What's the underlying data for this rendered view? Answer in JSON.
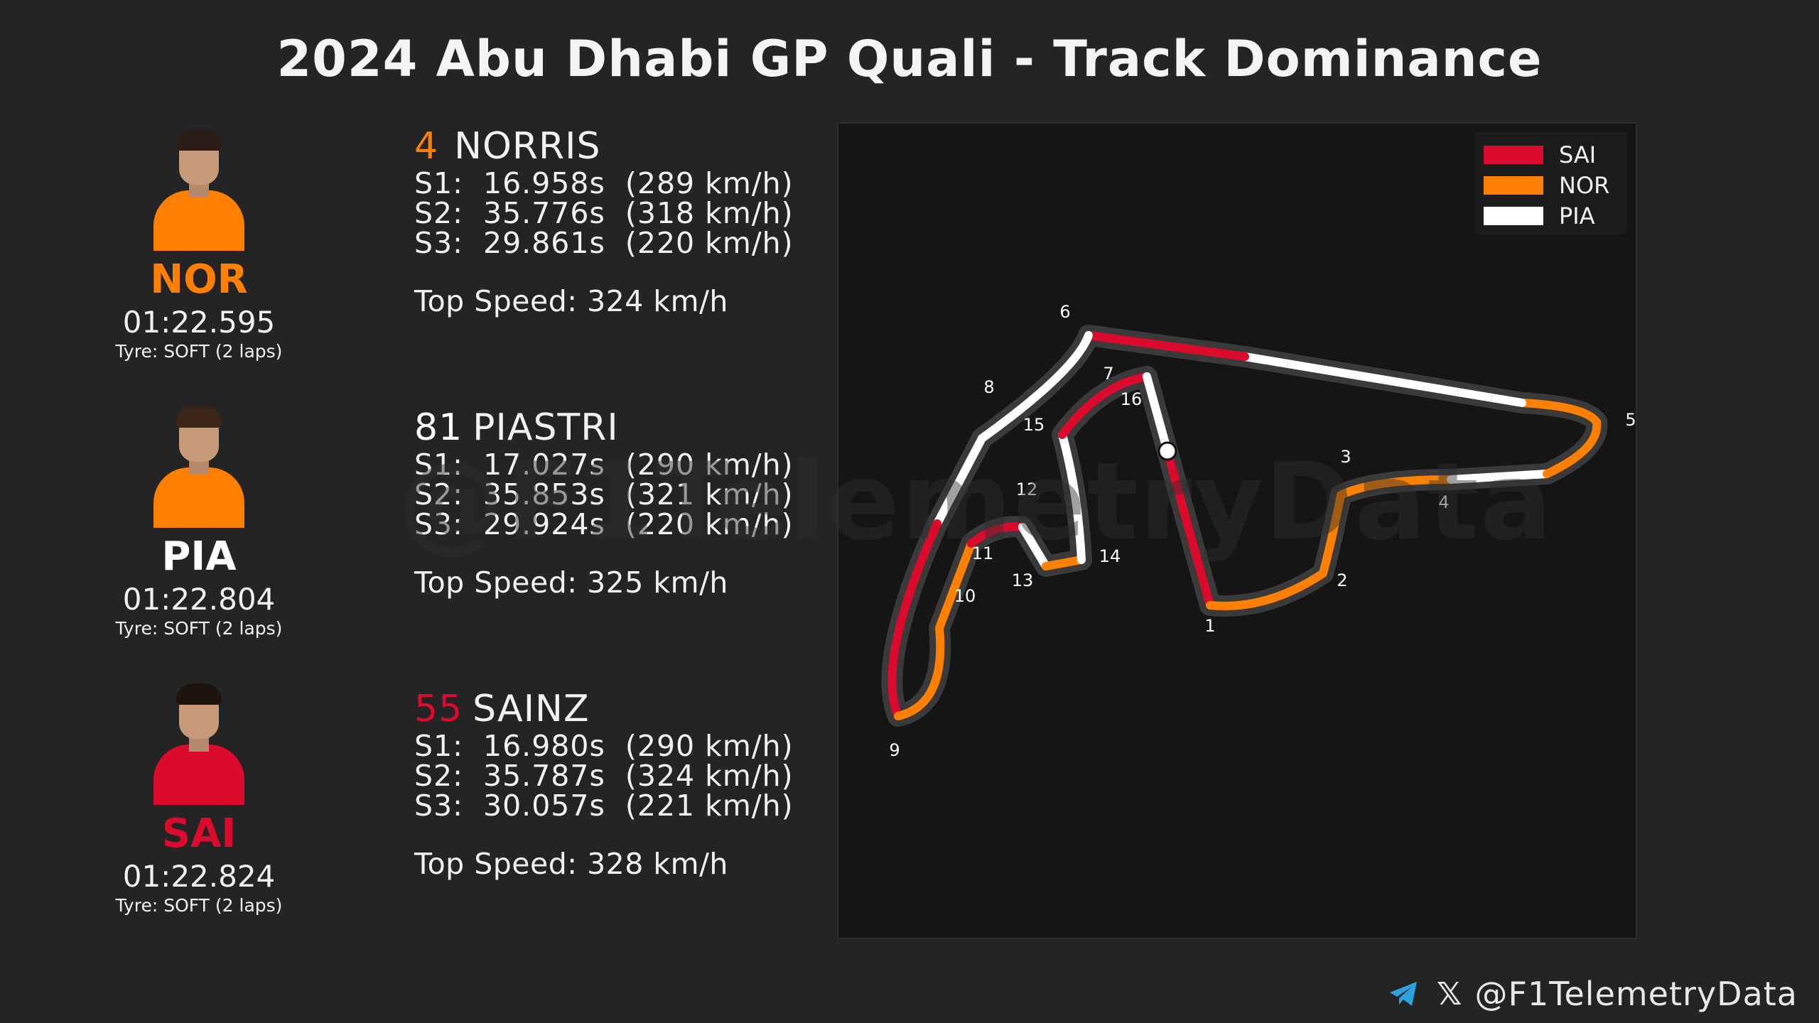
{
  "title": "2024 Abu Dhabi GP Quali - Track Dominance",
  "watermark": "@F1TelemetryData",
  "colors": {
    "SAI": "#dc0a2d",
    "NOR": "#ff8000",
    "PIA": "#ffffff"
  },
  "drivers": [
    {
      "code": "NOR",
      "number": "4",
      "name": "NORRIS",
      "number_color": "#ff8000",
      "lap_time": "01:22.595",
      "tyre": "Tyre: SOFT (2 laps)",
      "s1": "S1:  16.958s  (289 km/h)",
      "s2": "S2:  35.776s  (318 km/h)",
      "s3": "S3:  29.861s  (220 km/h)",
      "top_speed": "Top Speed: 324 km/h"
    },
    {
      "code": "PIA",
      "number": "81",
      "name": "PIASTRI",
      "number_color": "#ffffff",
      "lap_time": "01:22.804",
      "tyre": "Tyre: SOFT (2 laps)",
      "s1": "S1:  17.027s  (290 km/h)",
      "s2": "S2:  35.853s  (321 km/h)",
      "s3": "S3:  29.924s  (220 km/h)",
      "top_speed": "Top Speed: 325 km/h"
    },
    {
      "code": "SAI",
      "number": "55",
      "name": "SAINZ",
      "number_color": "#dc0a2d",
      "lap_time": "01:22.824",
      "tyre": "Tyre: SOFT (2 laps)",
      "s1": "S1:  16.980s  (290 km/h)",
      "s2": "S2:  35.787s  (324 km/h)",
      "s3": "S3:  30.057s  (221 km/h)",
      "top_speed": "Top Speed: 328 km/h"
    }
  ],
  "chart_data": {
    "type": "track-map",
    "title": "2024 Abu Dhabi GP Quali - Track Dominance",
    "legend": [
      "SAI",
      "NOR",
      "PIA"
    ],
    "legend_position": "top-right",
    "turn_labels": [
      "1",
      "2",
      "3",
      "4",
      "5",
      "6",
      "7",
      "8",
      "9",
      "10",
      "11",
      "12",
      "13",
      "14",
      "15",
      "16"
    ],
    "segments": [
      {
        "from_turn": "start",
        "to_turn": "1",
        "driver": "SAI"
      },
      {
        "from_turn": "1",
        "to_turn": "2",
        "driver": "NOR"
      },
      {
        "from_turn": "2",
        "to_turn": "3",
        "driver": "NOR"
      },
      {
        "from_turn": "3",
        "to_turn": "4",
        "driver": "NOR"
      },
      {
        "from_turn": "4",
        "to_turn": "4b",
        "driver": "PIA"
      },
      {
        "from_turn": "4b",
        "to_turn": "5",
        "driver": "NOR"
      },
      {
        "from_turn": "5",
        "to_turn": "5b",
        "driver": "NOR"
      },
      {
        "from_turn": "5b",
        "to_turn": "6a",
        "driver": "PIA"
      },
      {
        "from_turn": "6a",
        "to_turn": "6",
        "driver": "SAI"
      },
      {
        "from_turn": "6",
        "to_turn": "8",
        "driver": "PIA"
      },
      {
        "from_turn": "8",
        "to_turn": "8b",
        "driver": "PIA"
      },
      {
        "from_turn": "8b",
        "to_turn": "9",
        "driver": "SAI"
      },
      {
        "from_turn": "9",
        "to_turn": "10",
        "driver": "NOR"
      },
      {
        "from_turn": "10",
        "to_turn": "11",
        "driver": "NOR"
      },
      {
        "from_turn": "11",
        "to_turn": "12",
        "driver": "SAI"
      },
      {
        "from_turn": "12",
        "to_turn": "12b",
        "driver": "PIA"
      },
      {
        "from_turn": "12b",
        "to_turn": "14",
        "driver": "NOR"
      },
      {
        "from_turn": "14",
        "to_turn": "15",
        "driver": "PIA"
      },
      {
        "from_turn": "15",
        "to_turn": "16",
        "driver": "SAI"
      },
      {
        "from_turn": "16",
        "to_turn": "start",
        "driver": "PIA"
      }
    ]
  },
  "footer": {
    "handle": "@F1TelemetryData",
    "x_glyph": "𝕏"
  }
}
